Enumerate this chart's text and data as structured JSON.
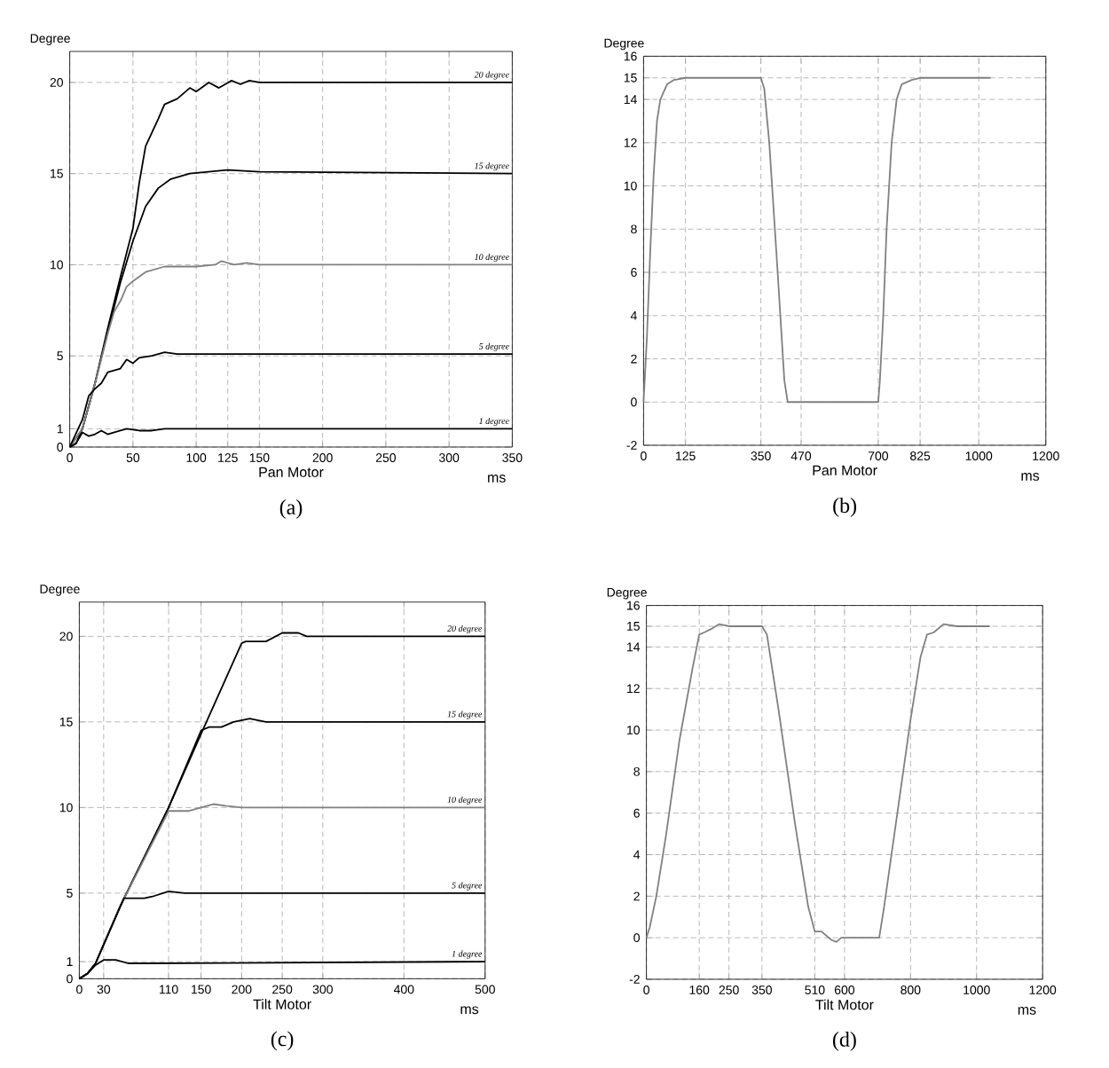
{
  "chart_data": [
    {
      "type": "line",
      "title": "(a)",
      "xlabel": "Pan Motor",
      "ylabel": "Degree",
      "annotations": [
        "ms"
      ],
      "xlim": [
        0,
        350
      ],
      "ylim": [
        0,
        21.7
      ],
      "xticks": [
        0,
        50,
        100,
        125,
        150,
        200,
        250,
        300,
        350
      ],
      "yticks": [
        0,
        1,
        5,
        10,
        15,
        20
      ],
      "grid": true,
      "legend": false,
      "series": [
        {
          "name": "20 degree",
          "color": "#000000",
          "x": [
            0,
            5,
            10,
            20,
            30,
            40,
            50,
            55,
            60,
            70,
            75,
            85,
            95,
            100,
            110,
            118,
            128,
            135,
            142,
            150,
            350
          ],
          "values": [
            0,
            0.2,
            1,
            3.5,
            6.5,
            9.3,
            12,
            14.5,
            16.5,
            18,
            18.8,
            19.1,
            19.7,
            19.5,
            20,
            19.7,
            20.1,
            19.9,
            20.1,
            20,
            20
          ]
        },
        {
          "name": "15 degree",
          "color": "#000000",
          "x": [
            0,
            10,
            20,
            30,
            40,
            50,
            60,
            70,
            80,
            95,
            125,
            150,
            350
          ],
          "values": [
            0,
            1,
            3.5,
            6.3,
            9,
            11.3,
            13.2,
            14.2,
            14.7,
            15,
            15.2,
            15.1,
            15
          ]
        },
        {
          "name": "10 degree",
          "color": "#808080",
          "x": [
            0,
            10,
            20,
            30,
            35,
            40,
            45,
            50,
            60,
            75,
            100,
            115,
            120,
            130,
            140,
            150,
            350
          ],
          "values": [
            0,
            1,
            3.5,
            6.2,
            7.4,
            8,
            8.8,
            9.1,
            9.6,
            9.9,
            9.9,
            10,
            10.2,
            10,
            10.1,
            10,
            10
          ]
        },
        {
          "name": "5 degree",
          "color": "#000000",
          "x": [
            0,
            10,
            15,
            20,
            25,
            30,
            40,
            45,
            50,
            55,
            65,
            75,
            85,
            95,
            350
          ],
          "values": [
            0,
            1.5,
            2.8,
            3.2,
            3.5,
            4.1,
            4.3,
            4.8,
            4.6,
            4.9,
            5,
            5.2,
            5.1,
            5.1,
            5.1
          ]
        },
        {
          "name": "1 degree",
          "color": "#000000",
          "x": [
            0,
            5,
            10,
            15,
            20,
            25,
            30,
            40,
            45,
            55,
            65,
            75,
            350
          ],
          "values": [
            0,
            0.2,
            0.8,
            0.6,
            0.7,
            0.9,
            0.7,
            0.9,
            1,
            0.9,
            0.9,
            1,
            1
          ]
        }
      ]
    },
    {
      "type": "line",
      "title": "(b)",
      "xlabel": "Pan Motor",
      "ylabel": "Degree",
      "annotations": [
        "ms"
      ],
      "xlim": [
        0,
        1200
      ],
      "ylim": [
        -2,
        16
      ],
      "xticks": [
        0,
        125,
        350,
        470,
        700,
        825,
        1000,
        1200
      ],
      "yticks": [
        -2,
        0,
        2,
        4,
        6,
        8,
        10,
        12,
        14,
        15,
        16
      ],
      "grid": true,
      "legend": false,
      "series": [
        {
          "color": "#808080",
          "x": [
            0,
            10,
            20,
            30,
            40,
            50,
            70,
            90,
            125,
            350,
            360,
            375,
            400,
            420,
            430,
            470,
            700,
            705,
            715,
            725,
            740,
            755,
            770,
            800,
            825,
            1035
          ],
          "values": [
            0,
            3,
            7,
            10.5,
            13,
            14,
            14.7,
            14.9,
            15,
            15,
            14.5,
            12,
            6,
            1,
            0,
            0,
            0,
            1,
            4,
            8,
            12,
            14,
            14.7,
            14.9,
            15,
            15
          ]
        }
      ]
    },
    {
      "type": "line",
      "title": "(c)",
      "xlabel": "Tilt Motor",
      "ylabel": "Degree",
      "annotations": [
        "ms"
      ],
      "xlim": [
        0,
        500
      ],
      "ylim": [
        0,
        22
      ],
      "xticks": [
        0,
        30,
        110,
        150,
        200,
        250,
        300,
        400,
        500
      ],
      "yticks": [
        0,
        1,
        5,
        10,
        15,
        20
      ],
      "grid": true,
      "legend": false,
      "series": [
        {
          "name": "20 degree",
          "color": "#000000",
          "x": [
            0,
            10,
            20,
            30,
            50,
            110,
            150,
            200,
            205,
            230,
            250,
            270,
            280,
            500
          ],
          "values": [
            0,
            0.3,
            0.9,
            2,
            4.2,
            10,
            14.3,
            19.6,
            19.7,
            19.7,
            20.2,
            20.2,
            20,
            20
          ]
        },
        {
          "name": "15 degree",
          "color": "#000000",
          "x": [
            0,
            10,
            20,
            30,
            50,
            110,
            150,
            160,
            175,
            190,
            210,
            230,
            500
          ],
          "values": [
            0,
            0.3,
            0.9,
            2,
            4.2,
            10,
            14.5,
            14.7,
            14.7,
            15,
            15.2,
            15,
            15
          ]
        },
        {
          "name": "10 degree",
          "color": "#808080",
          "x": [
            0,
            10,
            20,
            30,
            50,
            110,
            135,
            150,
            165,
            180,
            200,
            500
          ],
          "values": [
            0,
            0.3,
            0.9,
            2,
            4.2,
            9.8,
            9.8,
            10,
            10.2,
            10.1,
            10,
            10
          ]
        },
        {
          "name": "5 degree",
          "color": "#000000",
          "x": [
            0,
            10,
            20,
            30,
            55,
            80,
            90,
            110,
            130,
            500
          ],
          "values": [
            0,
            0.3,
            0.9,
            2,
            4.7,
            4.7,
            4.8,
            5.1,
            5,
            5
          ]
        },
        {
          "name": "1 degree",
          "color": "#000000",
          "x": [
            0,
            10,
            20,
            30,
            45,
            60,
            80,
            500
          ],
          "values": [
            0,
            0.3,
            0.8,
            1.1,
            1.1,
            0.9,
            0.9,
            1
          ]
        }
      ]
    },
    {
      "type": "line",
      "title": "(d)",
      "xlabel": "Tilt Motor",
      "ylabel": "Degree",
      "annotations": [
        "ms"
      ],
      "xlim": [
        0,
        1200
      ],
      "ylim": [
        -2,
        16
      ],
      "xticks": [
        0,
        160,
        250,
        350,
        510,
        600,
        800,
        1000,
        1200
      ],
      "yticks": [
        -2,
        0,
        2,
        4,
        6,
        8,
        10,
        12,
        14,
        15,
        16
      ],
      "grid": true,
      "legend": false,
      "series": [
        {
          "color": "#808080",
          "x": [
            0,
            10,
            30,
            60,
            100,
            140,
            160,
            175,
            200,
            220,
            250,
            350,
            365,
            400,
            450,
            490,
            510,
            530,
            560,
            575,
            590,
            600,
            705,
            720,
            760,
            800,
            830,
            850,
            870,
            900,
            940,
            1040
          ],
          "values": [
            0,
            0.5,
            2,
            5,
            9.5,
            13,
            14.6,
            14.7,
            14.9,
            15.1,
            15,
            15,
            14.6,
            11,
            5.5,
            1.5,
            0.3,
            0.3,
            -0.1,
            -0.2,
            0,
            0,
            0,
            1.5,
            6,
            10.5,
            13.5,
            14.6,
            14.7,
            15.1,
            15,
            15
          ]
        }
      ]
    }
  ]
}
